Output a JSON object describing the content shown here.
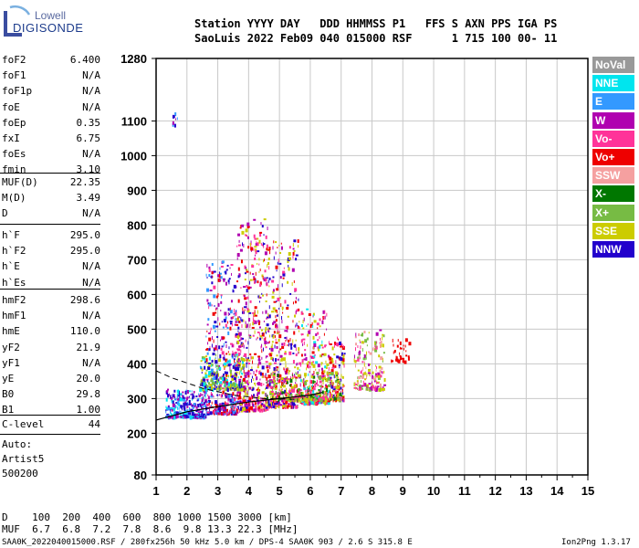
{
  "logo": {
    "top": "Lowell",
    "bottom": "DIGISONDE"
  },
  "header": {
    "line1": "Station YYYY DAY   DDD HHMMSS P1   FFS S AXN PPS IGA PS",
    "line2": "SaoLuis 2022 Feb09 040 015000 RSF      1 715 100 00- 11"
  },
  "params_group1": [
    {
      "k": "foF2",
      "v": "6.400"
    },
    {
      "k": "foF1",
      "v": "N/A"
    },
    {
      "k": "foF1p",
      "v": "N/A"
    },
    {
      "k": "foE",
      "v": "N/A"
    },
    {
      "k": "foEp",
      "v": "0.35"
    },
    {
      "k": "fxI",
      "v": "6.75"
    },
    {
      "k": "foEs",
      "v": "N/A"
    },
    {
      "k": "fmin",
      "v": "3.10"
    }
  ],
  "params_group2": [
    {
      "k": "MUF(D)",
      "v": "22.35"
    },
    {
      "k": "M(D)",
      "v": "3.49"
    },
    {
      "k": "D",
      "v": "N/A"
    }
  ],
  "params_group3": [
    {
      "k": "h`F",
      "v": "295.0"
    },
    {
      "k": "h`F2",
      "v": "295.0"
    },
    {
      "k": "h`E",
      "v": "N/A"
    },
    {
      "k": "h`Es",
      "v": "N/A"
    }
  ],
  "params_group4": [
    {
      "k": "hmF2",
      "v": "298.6"
    },
    {
      "k": "hmF1",
      "v": "N/A"
    },
    {
      "k": "hmE",
      "v": "110.0"
    },
    {
      "k": "yF2",
      "v": "21.9"
    },
    {
      "k": "yF1",
      "v": "N/A"
    },
    {
      "k": "yE",
      "v": "20.0"
    },
    {
      "k": "B0",
      "v": "29.8"
    },
    {
      "k": "B1",
      "v": "1.00"
    }
  ],
  "clevel": {
    "k": "C-level",
    "v": "44"
  },
  "auto": {
    "line1": "Auto:",
    "line2": "Artist5",
    "line3": "500200"
  },
  "legend": [
    {
      "label": "NoVal",
      "color": "#999999"
    },
    {
      "label": "NNE",
      "color": "#00e5ee"
    },
    {
      "label": "E",
      "color": "#3399ff"
    },
    {
      "label": "W",
      "color": "#b000b0"
    },
    {
      "label": "Vo-",
      "color": "#ff3399"
    },
    {
      "label": "Vo+",
      "color": "#ee0000"
    },
    {
      "label": "SSW",
      "color": "#f5a0a0"
    },
    {
      "label": "X-",
      "color": "#007700"
    },
    {
      "label": "X+",
      "color": "#77bb44"
    },
    {
      "label": "SSE",
      "color": "#cccc00"
    },
    {
      "label": "NNW",
      "color": "#2200cc"
    }
  ],
  "bottom": {
    "d_line": "D    100  200  400  600  800 1000 1500 3000 [km]",
    "muf_line": "MUF  6.7  6.8  7.2  7.8  8.6  9.8 13.3 22.3 [MHz]"
  },
  "footer": {
    "left": "SAA0K_2022040015000.RSF / 280fx256h 50 kHz 5.0 km / DPS-4 SAA0K 903 / 2.6 S 315.8 E",
    "right": "Ion2Png 1.3.17"
  },
  "chart_data": {
    "type": "scatter",
    "xlim": [
      1,
      15
    ],
    "ylim": [
      80,
      1280
    ],
    "xticks": [
      "1",
      "2",
      "3",
      "4",
      "5",
      "6",
      "7",
      "8",
      "9",
      "10",
      "11",
      "12",
      "13",
      "14",
      "15"
    ],
    "yticks": [
      {
        "v": 80,
        "label": "80"
      },
      {
        "v": 200,
        "label": "200"
      },
      {
        "v": 300,
        "label": "300"
      },
      {
        "v": 400,
        "label": "400"
      },
      {
        "v": 500,
        "label": "500"
      },
      {
        "v": 600,
        "label": "600"
      },
      {
        "v": 700,
        "label": "700"
      },
      {
        "v": 800,
        "label": "800"
      },
      {
        "v": 900,
        "label": "900"
      },
      {
        "v": 1000,
        "label": "1000"
      },
      {
        "v": 1100,
        "label": "1100"
      },
      {
        "v": 1280,
        "label": "1280"
      }
    ],
    "grid": true,
    "profile_line": [
      [
        1,
        238
      ],
      [
        2,
        262
      ],
      [
        3,
        277
      ],
      [
        4,
        290
      ],
      [
        5,
        300
      ],
      [
        6,
        310
      ],
      [
        6.4,
        318
      ]
    ],
    "dashed_line": [
      [
        1,
        380
      ],
      [
        1.5,
        360
      ],
      [
        2.5,
        330
      ],
      [
        3.5,
        310
      ],
      [
        4.5,
        300
      ],
      [
        5.5,
        298
      ]
    ],
    "clusters": [
      {
        "x": [
          1.3,
          2.6
        ],
        "y": [
          250,
          330
        ],
        "n": 320,
        "colors": [
          "#2200cc",
          "#2200cc",
          "#3399ff",
          "#b000b0",
          "#00e5ee"
        ]
      },
      {
        "x": [
          2.6,
          3.6
        ],
        "y": [
          260,
          700
        ],
        "n": 420,
        "colors": [
          "#b000b0",
          "#ff3399",
          "#2200cc",
          "#ee0000",
          "#3399ff"
        ]
      },
      {
        "x": [
          3.6,
          4.6
        ],
        "y": [
          270,
          820
        ],
        "n": 520,
        "colors": [
          "#b000b0",
          "#ff3399",
          "#ee0000",
          "#2200cc",
          "#cccc00"
        ]
      },
      {
        "x": [
          4.6,
          5.6
        ],
        "y": [
          280,
          760
        ],
        "n": 420,
        "colors": [
          "#b000b0",
          "#ff3399",
          "#ee0000",
          "#cccc00",
          "#2200cc"
        ]
      },
      {
        "x": [
          5.6,
          6.6
        ],
        "y": [
          290,
          560
        ],
        "n": 320,
        "colors": [
          "#ff3399",
          "#ee0000",
          "#b000b0",
          "#cccc00",
          "#00e5ee"
        ]
      },
      {
        "x": [
          6.6,
          7.1
        ],
        "y": [
          300,
          480
        ],
        "n": 140,
        "colors": [
          "#ee0000",
          "#ff3399",
          "#cccc00",
          "#2200cc"
        ]
      },
      {
        "x": [
          7.4,
          8.4
        ],
        "y": [
          330,
          500
        ],
        "n": 200,
        "colors": [
          "#cccc00",
          "#f5a0a0",
          "#77bb44",
          "#ff3399",
          "#b000b0"
        ]
      },
      {
        "x": [
          8.6,
          9.2
        ],
        "y": [
          410,
          475
        ],
        "n": 40,
        "colors": [
          "#ee0000"
        ]
      },
      {
        "x": [
          1.5,
          1.7
        ],
        "y": [
          1090,
          1170
        ],
        "n": 8,
        "colors": [
          "#2200cc",
          "#3399ff",
          "#b000b0"
        ]
      },
      {
        "x": [
          2.4,
          3.8
        ],
        "y": [
          330,
          430
        ],
        "n": 260,
        "colors": [
          "#cccc00",
          "#77bb44",
          "#00e5ee",
          "#2200cc"
        ]
      },
      {
        "x": [
          4.5,
          7.0
        ],
        "y": [
          300,
          380
        ],
        "n": 260,
        "colors": [
          "#cccc00",
          "#77bb44",
          "#007700",
          "#ff3399"
        ]
      }
    ]
  }
}
